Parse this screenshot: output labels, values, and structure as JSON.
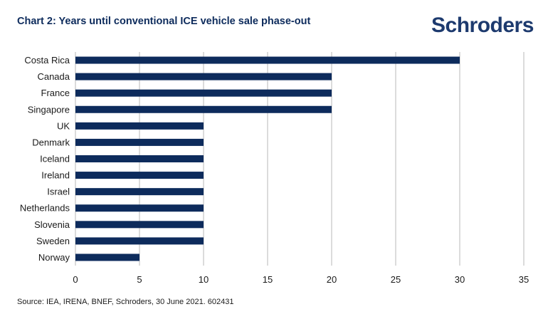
{
  "header": {
    "title": "Chart 2: Years until conventional ICE vehicle sale phase-out",
    "brand": "Schroders"
  },
  "footer": {
    "source": "Source: IEA, IRENA, BNEF, Schroders, 30 June 2021. 602431"
  },
  "colors": {
    "bar": "#0d2b5c",
    "grid": "#c8c8c8",
    "title": "#0d2b5c",
    "brand": "#1d3a6e"
  },
  "chart_data": {
    "type": "bar",
    "orientation": "horizontal",
    "title": "Chart 2: Years until conventional ICE vehicle sale phase-out",
    "xlabel": "",
    "ylabel": "",
    "categories": [
      "Costa Rica",
      "Canada",
      "France",
      "Singapore",
      "UK",
      "Denmark",
      "Iceland",
      "Ireland",
      "Israel",
      "Netherlands",
      "Slovenia",
      "Sweden",
      "Norway"
    ],
    "values": [
      30,
      20,
      20,
      20,
      10,
      10,
      10,
      10,
      10,
      10,
      10,
      10,
      5
    ],
    "xlim": [
      0,
      35
    ],
    "xticks": [
      0,
      5,
      10,
      15,
      20,
      25,
      30,
      35
    ],
    "grid": "vertical",
    "legend": "none"
  }
}
